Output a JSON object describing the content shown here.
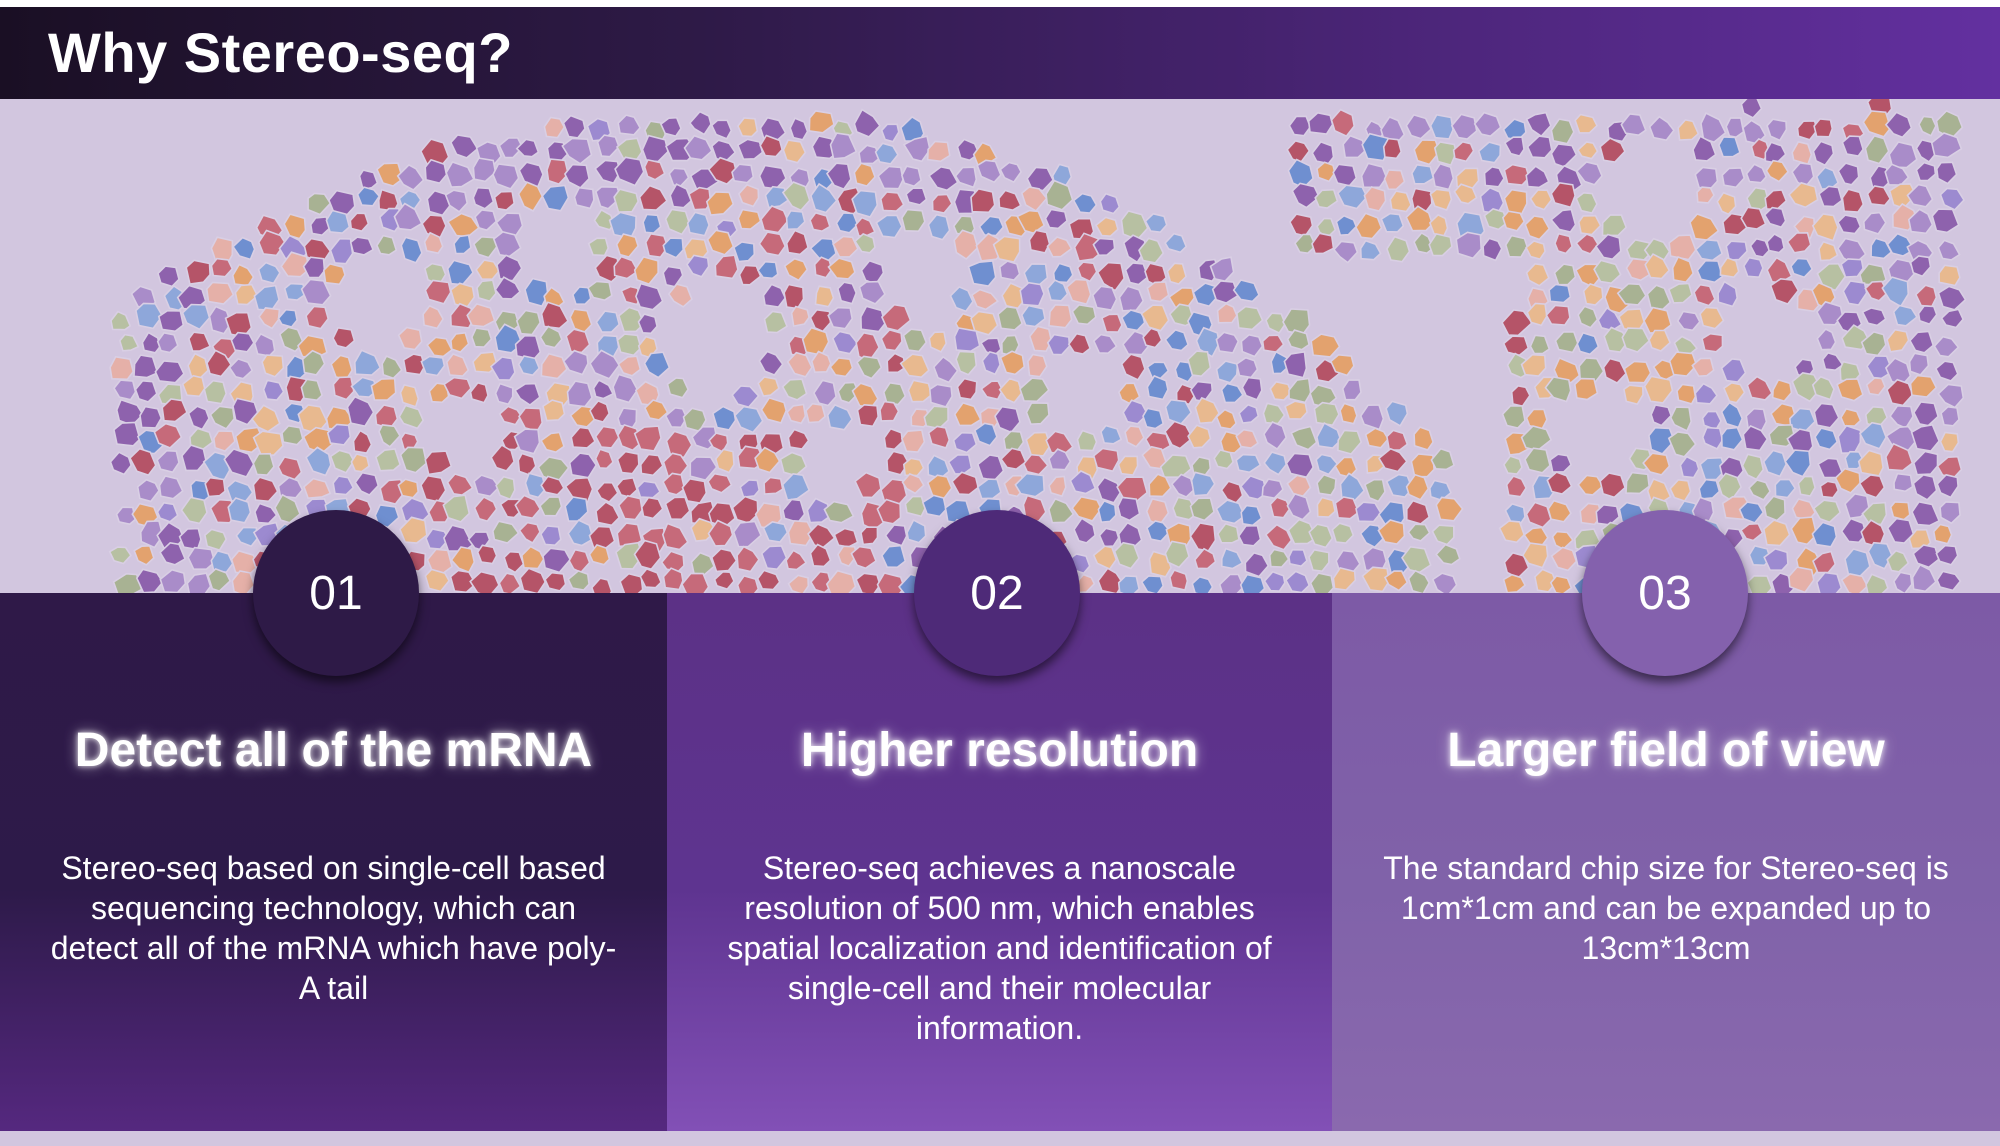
{
  "header": {
    "title": "Why Stereo-seq?"
  },
  "features": [
    {
      "number": "01",
      "title": "Detect all of the mRNA",
      "description": "Stereo-seq based on single-cell based sequencing technology, which can detect all of the mRNA which have poly-A tail"
    },
    {
      "number": "02",
      "title": "Higher resolution",
      "description": "Stereo-seq achieves a nanoscale resolution of 500 nm, which enables spatial localization and identification of single-cell and their molecular information."
    },
    {
      "number": "03",
      "title": "Larger field of view",
      "description": "The standard chip size for Stereo-seq is 1cm*1cm and can be expanded up to 13cm*13cm"
    }
  ],
  "colors": {
    "header_gradient_start": "#1a0f24",
    "header_gradient_end": "#6330a0",
    "tissue_background": "#d2c6df",
    "cell_palette": [
      "#8e62ad",
      "#a98cc9",
      "#8ea7da",
      "#6f8fd0",
      "#e3a26e",
      "#e8b98f",
      "#a8b293",
      "#b7c0a2",
      "#c66a7a",
      "#b55468",
      "#e5b0a8",
      "#9c8ad0"
    ],
    "panel_1": "#2e1a47",
    "panel_2": "#5e3490",
    "panel_3": "#8062a9"
  }
}
